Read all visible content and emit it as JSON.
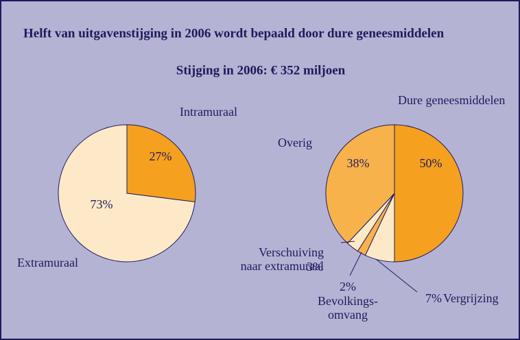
{
  "title": "Helft van uitgavenstijging in 2006 wordt bepaald door dure geneesmiddelen",
  "subtitle": "Stijging in 2006: € 352 miljoen",
  "chart_data": [
    {
      "type": "pie",
      "categories": [
        "Intramuraal",
        "Extramuraal"
      ],
      "values": [
        27,
        73
      ],
      "value_labels": [
        "27%",
        "73%"
      ],
      "colors": [
        "#f5a01e",
        "#fde9c8"
      ]
    },
    {
      "type": "pie",
      "categories": [
        "Dure geneesmiddelen",
        "Vergrijzing",
        "Bevolkings-\nomvang",
        "Verschuiving\nnaar extramuraal",
        "Overig"
      ],
      "values": [
        50,
        7,
        2,
        3,
        38
      ],
      "value_labels": [
        "50%",
        "7%",
        "2%",
        "3%",
        "38%"
      ],
      "colors": [
        "#f5a01e",
        "#fde9c8",
        "#f8b24c",
        "#fde9c8",
        "#f8b24c"
      ]
    }
  ]
}
